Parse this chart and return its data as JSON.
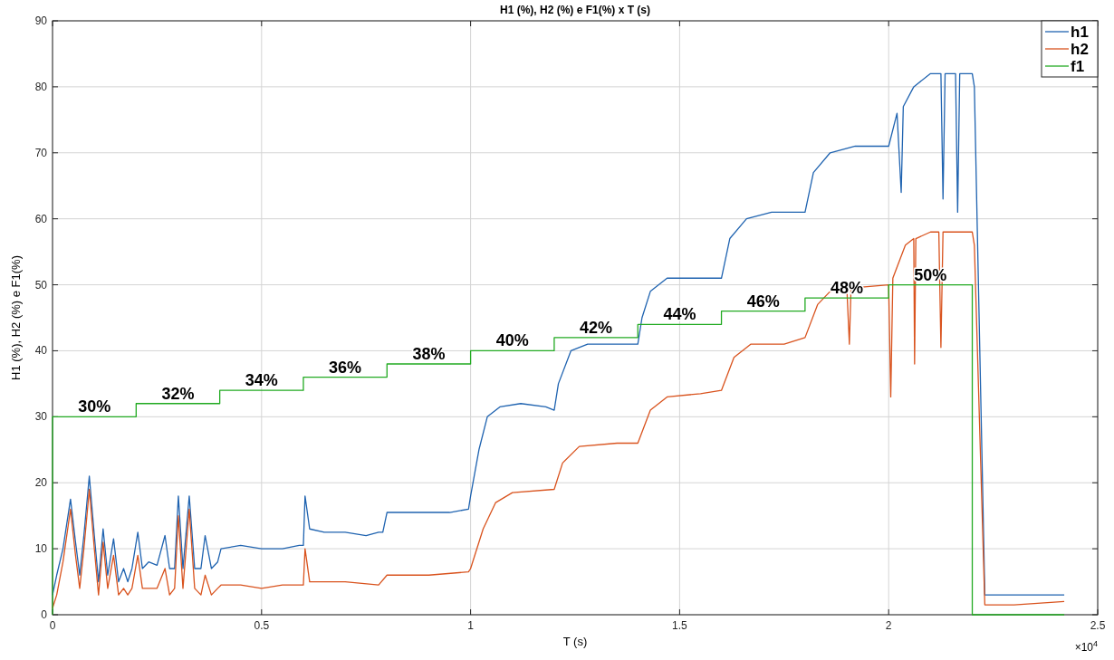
{
  "chart_data": {
    "type": "line",
    "title": "H1 (%), H2 (%) e F1(%) x T (s)",
    "xlabel": "T (s)",
    "ylabel": "H1 (%), H2 (%) e F1(%)",
    "xlim": [
      0,
      2.5
    ],
    "xticks": [
      0,
      0.5,
      1,
      1.5,
      2,
      2.5
    ],
    "ylim": [
      0,
      90
    ],
    "yticks": [
      0,
      10,
      20,
      30,
      40,
      50,
      60,
      70,
      80,
      90
    ],
    "grid": true,
    "legend": "top right",
    "line_style": "solid",
    "marker": "none",
    "series": [
      {
        "name": "h1",
        "color": "#1f63b0",
        "x": [
          0,
          0.01,
          0.025,
          0.043,
          0.055,
          0.065,
          0.075,
          0.088,
          0.1,
          0.11,
          0.121,
          0.132,
          0.146,
          0.158,
          0.17,
          0.18,
          0.19,
          0.204,
          0.215,
          0.23,
          0.25,
          0.269,
          0.28,
          0.292,
          0.301,
          0.312,
          0.327,
          0.34,
          0.355,
          0.365,
          0.38,
          0.395,
          0.403,
          0.45,
          0.5,
          0.55,
          0.59,
          0.6,
          0.604,
          0.615,
          0.65,
          0.7,
          0.75,
          0.78,
          0.79,
          0.8,
          0.85,
          0.9,
          0.95,
          0.995,
          1.0,
          1.02,
          1.04,
          1.07,
          1.12,
          1.18,
          1.2,
          1.21,
          1.24,
          1.28,
          1.35,
          1.4,
          1.41,
          1.43,
          1.47,
          1.53,
          1.6,
          1.62,
          1.66,
          1.72,
          1.78,
          1.8,
          1.82,
          1.86,
          1.92,
          2.0,
          2.02,
          2.03,
          2.035,
          2.06,
          2.1,
          2.125,
          2.13,
          2.135,
          2.16,
          2.165,
          2.17,
          2.2,
          2.205,
          2.23,
          2.3,
          2.42
        ],
        "values": [
          3,
          6,
          10,
          17.5,
          11,
          6,
          12,
          21,
          12,
          5,
          13,
          6,
          11.5,
          5,
          7,
          5,
          7,
          12.5,
          7,
          8,
          7.5,
          12,
          7,
          7,
          18,
          7,
          18,
          7,
          7,
          12,
          7,
          8,
          10,
          10.5,
          10,
          10,
          10.5,
          10.5,
          18,
          13,
          12.5,
          12.5,
          12,
          12.5,
          12.5,
          15.5,
          15.5,
          15.5,
          15.5,
          16,
          18,
          25,
          30,
          31.5,
          32,
          31.5,
          31,
          35,
          40,
          41,
          41,
          41,
          45,
          49,
          51,
          51,
          51,
          57,
          60,
          61,
          61,
          61,
          67,
          70,
          71,
          71,
          76,
          64,
          77,
          80,
          82,
          82,
          63,
          82,
          82,
          61,
          82,
          82,
          80,
          3,
          3,
          3
        ]
      },
      {
        "name": "h2",
        "color": "#d9531e",
        "x": [
          0,
          0.01,
          0.025,
          0.043,
          0.055,
          0.065,
          0.075,
          0.088,
          0.1,
          0.11,
          0.121,
          0.132,
          0.146,
          0.158,
          0.17,
          0.18,
          0.19,
          0.204,
          0.215,
          0.23,
          0.25,
          0.269,
          0.28,
          0.292,
          0.301,
          0.312,
          0.327,
          0.34,
          0.355,
          0.365,
          0.38,
          0.395,
          0.403,
          0.45,
          0.5,
          0.55,
          0.6,
          0.604,
          0.615,
          0.7,
          0.78,
          0.8,
          0.9,
          0.995,
          1.0,
          1.03,
          1.06,
          1.1,
          1.2,
          1.22,
          1.26,
          1.35,
          1.4,
          1.43,
          1.47,
          1.55,
          1.6,
          1.63,
          1.67,
          1.75,
          1.8,
          1.83,
          1.86,
          1.9,
          1.906,
          1.91,
          2.0,
          2.005,
          2.01,
          2.04,
          2.06,
          2.062,
          2.065,
          2.1,
          2.12,
          2.125,
          2.13,
          2.2,
          2.205,
          2.23,
          2.3,
          2.42
        ],
        "values": [
          1,
          3,
          8,
          16,
          9,
          4,
          10,
          19,
          10,
          3,
          11,
          4,
          9,
          3,
          4,
          3,
          4,
          9,
          4,
          4,
          4,
          7,
          3,
          4,
          15,
          4,
          16,
          4,
          3,
          6,
          3,
          4,
          4.5,
          4.5,
          4,
          4.5,
          4.5,
          10,
          5,
          5,
          4.5,
          6,
          6,
          6.5,
          7,
          13,
          17,
          18.5,
          19,
          23,
          25.5,
          26,
          26,
          31,
          33,
          33.5,
          34,
          39,
          41,
          41,
          42,
          47,
          49,
          49.5,
          41,
          49.5,
          50,
          33,
          51,
          56,
          57,
          38,
          57,
          58,
          58,
          40.5,
          58,
          58,
          56,
          1.5,
          1.5,
          2
        ]
      },
      {
        "name": "f1",
        "color": "#22aa22",
        "type": "step",
        "x": [
          0,
          0,
          0.2,
          0.4,
          0.6,
          0.8,
          1,
          1.2,
          1.4,
          1.6,
          1.8,
          2,
          2.2,
          2.42
        ],
        "values": [
          0,
          30,
          32,
          34,
          36,
          38,
          40,
          42,
          44,
          46,
          48,
          50,
          0,
          0
        ]
      }
    ],
    "annotations": [
      {
        "text": "30%",
        "x": 0.1,
        "y": 30
      },
      {
        "text": "32%",
        "x": 0.3,
        "y": 32
      },
      {
        "text": "34%",
        "x": 0.5,
        "y": 34
      },
      {
        "text": "36%",
        "x": 0.7,
        "y": 36
      },
      {
        "text": "38%",
        "x": 0.9,
        "y": 38
      },
      {
        "text": "40%",
        "x": 1.1,
        "y": 40
      },
      {
        "text": "42%",
        "x": 1.3,
        "y": 42
      },
      {
        "text": "44%",
        "x": 1.5,
        "y": 44
      },
      {
        "text": "46%",
        "x": 1.7,
        "y": 46
      },
      {
        "text": "48%",
        "x": 1.9,
        "y": 48
      },
      {
        "text": "50%",
        "x": 2.1,
        "y": 50
      },
      "×10$^{4}$"
    ]
  }
}
